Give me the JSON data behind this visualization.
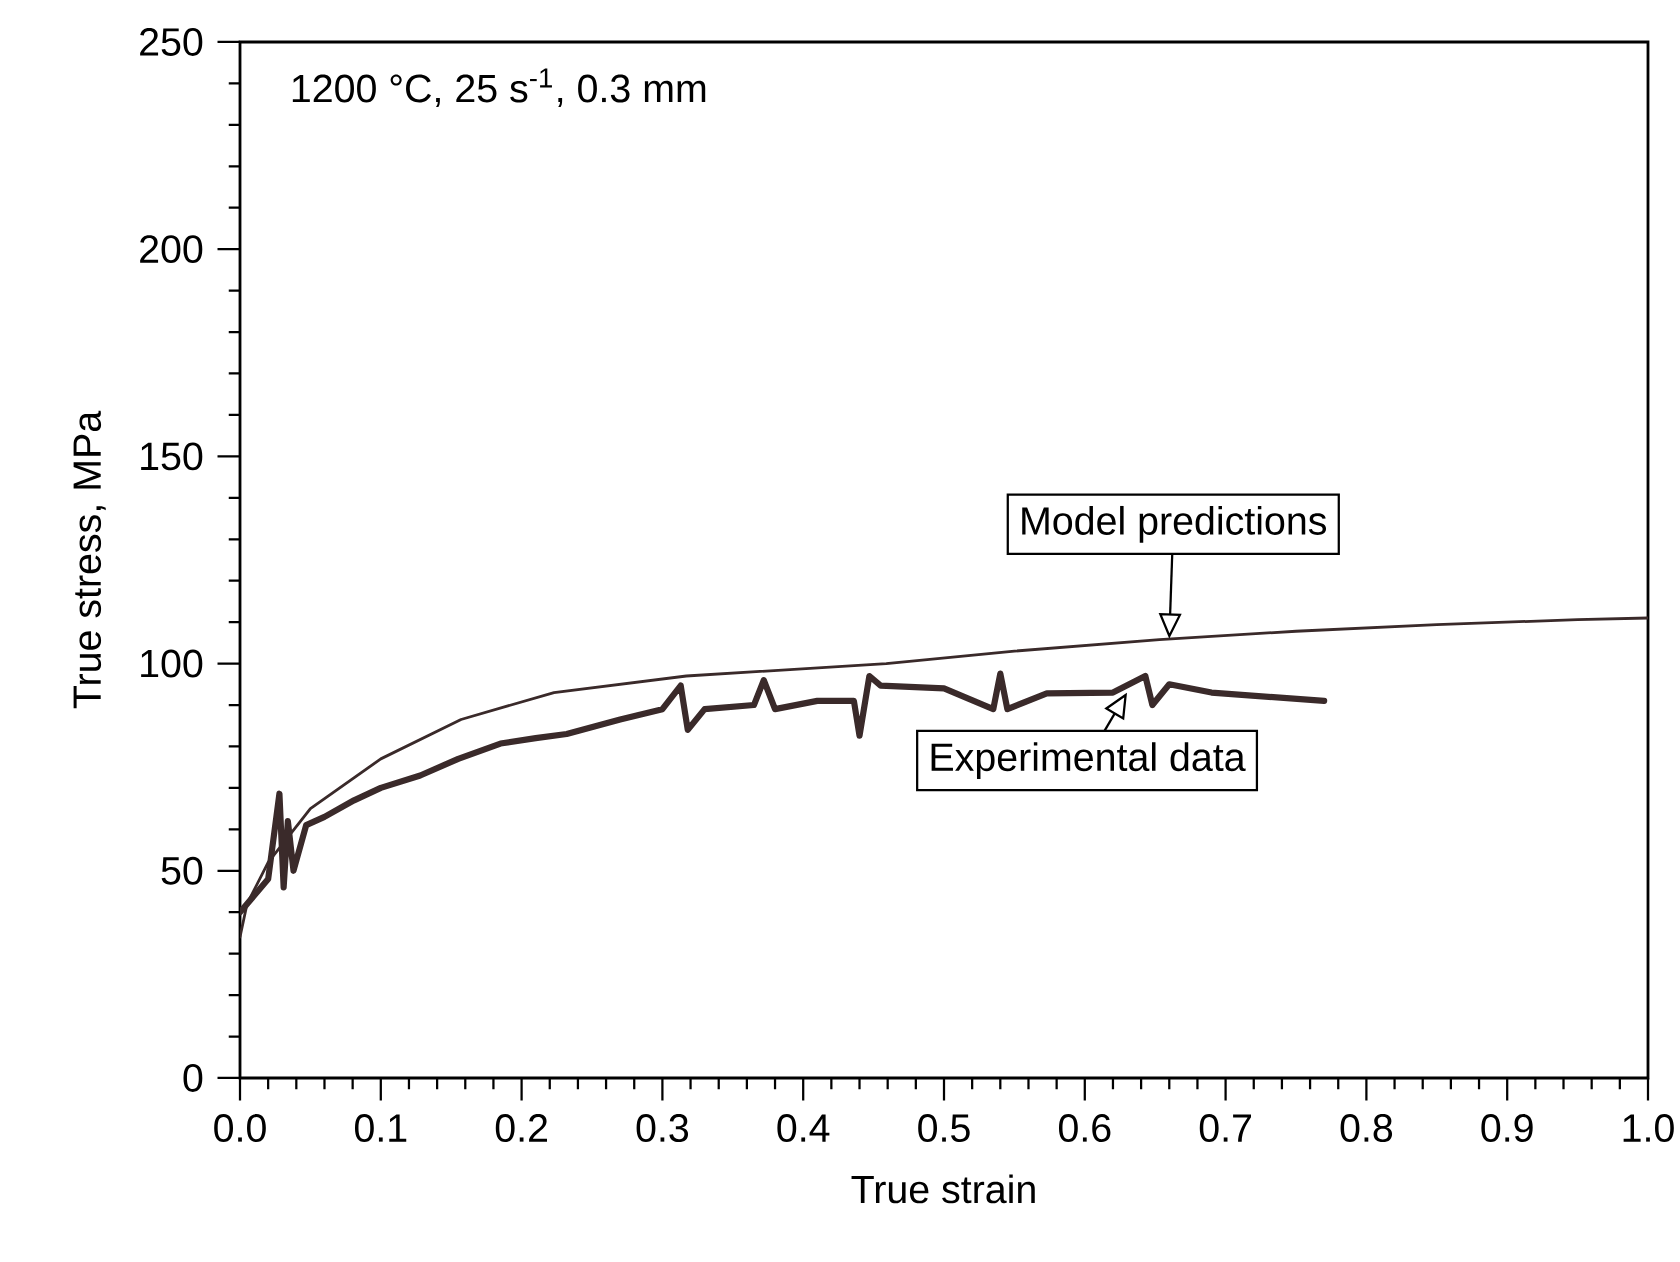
{
  "chart_data": {
    "type": "line",
    "title": "1200 °C, 25 s$^{-1}$, 0.3 mm",
    "xlabel": "True strain",
    "ylabel": "True stress, MPa",
    "xlim": [
      0,
      1.0
    ],
    "ylim": [
      0,
      250
    ],
    "xticks": [
      {
        "value": 0,
        "label": "0.0"
      },
      0.1,
      0.2,
      0.3,
      0.4,
      0.5,
      0.6,
      0.7,
      0.8,
      0.9,
      {
        "value": 1.0,
        "label": "1.0"
      }
    ],
    "yticks": [
      0,
      50,
      100,
      150,
      200,
      250
    ],
    "grid": false,
    "legend": false,
    "marker": "none",
    "line_style": "solid",
    "series": [
      {
        "color": "#3a2a2a",
        "x": [
          0,
          0.005,
          0.02,
          0.05,
          0.1,
          0.157,
          0.223,
          0.317,
          0.459,
          0.55,
          0.653,
          0.75,
          0.85,
          0.95,
          1.0
        ],
        "values": [
          34,
          42,
          52,
          65,
          77,
          86.5,
          93,
          97,
          100,
          103,
          105.8,
          107.8,
          109.4,
          110.6,
          111
        ]
      },
      {
        "color": "#3a2a2a",
        "x": [
          0,
          0.01,
          0.02,
          0.028,
          0.031,
          0.034,
          0.038,
          0.047,
          0.06,
          0.081,
          0.1,
          0.128,
          0.155,
          0.185,
          0.21,
          0.232,
          0.27,
          0.3,
          0.313,
          0.318,
          0.33,
          0.365,
          0.372,
          0.38,
          0.41,
          0.436,
          0.44,
          0.447,
          0.455,
          0.5,
          0.535,
          0.54,
          0.545,
          0.573,
          0.62,
          0.643,
          0.648,
          0.66,
          0.69,
          0.73,
          0.77
        ],
        "values": [
          40,
          44,
          48,
          68.6,
          46,
          62,
          50,
          61,
          63,
          67,
          70,
          73,
          77,
          80.7,
          82,
          83,
          86.5,
          89,
          94.7,
          84,
          89,
          90,
          96,
          89,
          91,
          91,
          82.6,
          97,
          94.7,
          94,
          89,
          97.6,
          89,
          92.8,
          93,
          97,
          90,
          95,
          93,
          92,
          91
        ]
      }
    ],
    "annotations": [
      {
        "text": "Model predictions",
        "x": 0.66,
        "y": 106
      },
      {
        "text": "Experimental data",
        "x": 0.63,
        "y": 93
      }
    ]
  }
}
